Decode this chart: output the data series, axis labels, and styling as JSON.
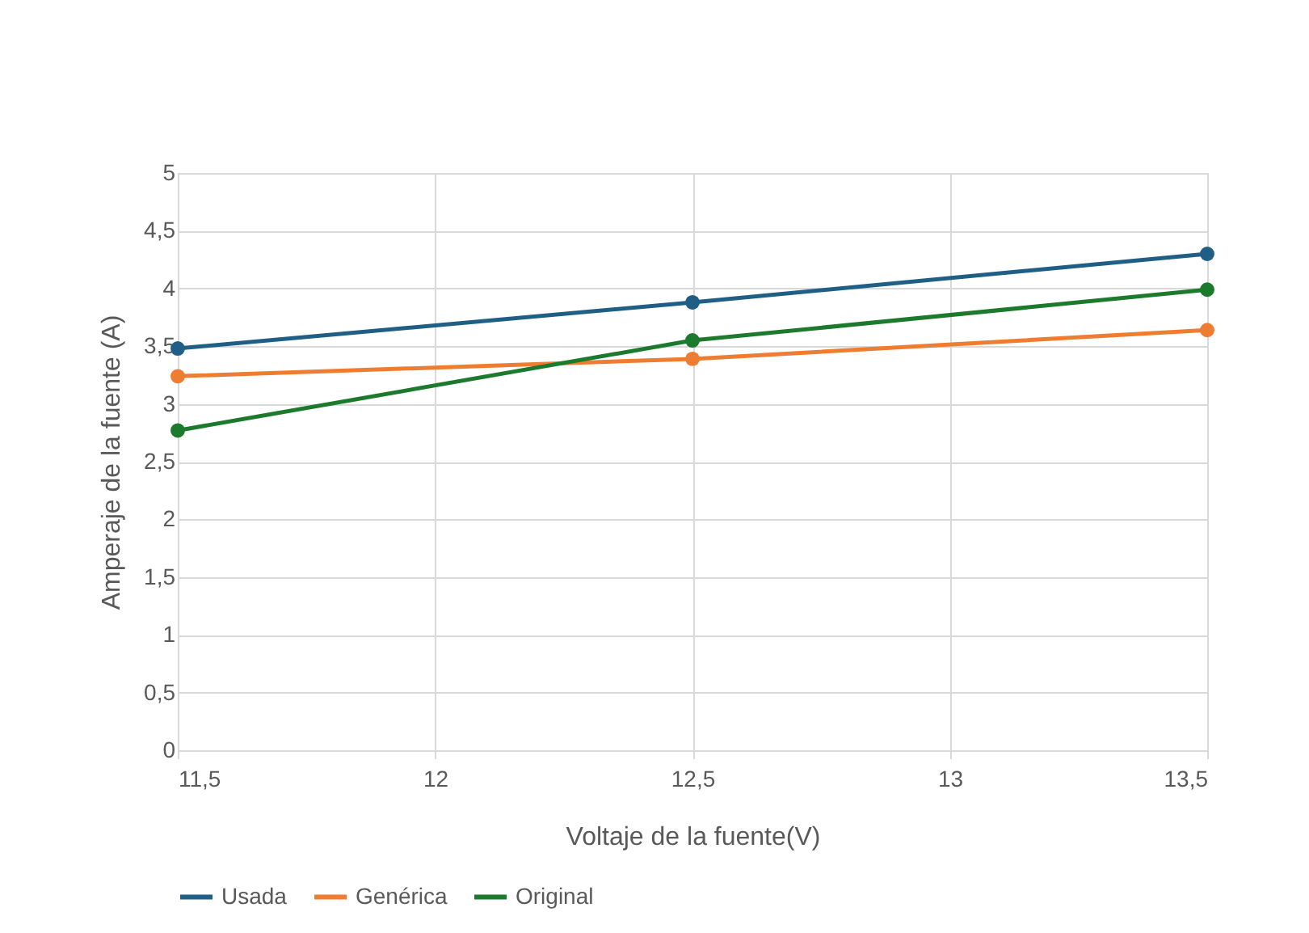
{
  "chart_data": {
    "type": "line",
    "xlabel": "Voltaje de la fuente(V)",
    "ylabel": "Amperaje de la fuente (A)",
    "x": [
      11.5,
      12.5,
      13.5
    ],
    "series": [
      {
        "name": "Usada",
        "color": "#1f5f86",
        "values": [
          3.48,
          3.88,
          4.3
        ]
      },
      {
        "name": "Genérica",
        "color": "#ee7d31",
        "values": [
          3.24,
          3.39,
          3.64
        ]
      },
      {
        "name": "Original",
        "color": "#1b7a2b",
        "values": [
          2.77,
          3.55,
          3.99
        ]
      }
    ],
    "xlim": [
      11.5,
      13.5
    ],
    "ylim": [
      0,
      5
    ],
    "xticks": [
      {
        "value": 11.5,
        "label": "11,5"
      },
      12,
      {
        "value": 12.5,
        "label": "12,5"
      },
      13,
      {
        "value": 13.5,
        "label": "13,5"
      }
    ],
    "yticks": [
      0,
      {
        "value": 0.5,
        "label": "0,5"
      },
      1,
      {
        "value": 1.5,
        "label": "1,5"
      },
      2,
      {
        "value": 2.5,
        "label": "2,5"
      },
      3,
      {
        "value": 3.5,
        "label": "3,5"
      },
      4,
      {
        "value": 4.5,
        "label": "4,5"
      },
      5
    ],
    "grid": true,
    "legend": "bottom",
    "marker": "circle",
    "line_style": "solid"
  }
}
